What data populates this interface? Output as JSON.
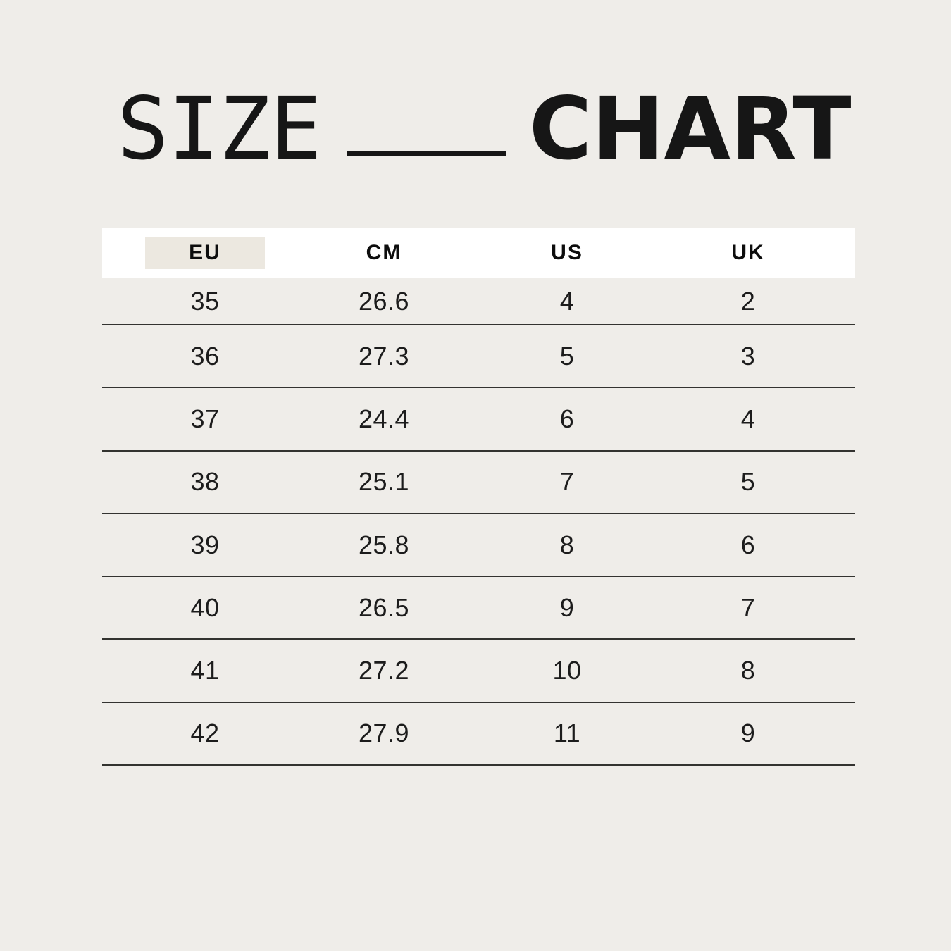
{
  "title": {
    "left_word": "SIZE",
    "right_word": "CHART"
  },
  "table": {
    "columns": [
      "EU",
      "CM",
      "US",
      "UK"
    ],
    "highlighted_column": "EU",
    "rows": [
      [
        "35",
        "26.6",
        "4",
        "2"
      ],
      [
        "36",
        "27.3",
        "5",
        "3"
      ],
      [
        "37",
        "24.4",
        "6",
        "4"
      ],
      [
        "38",
        "25.1",
        "7",
        "5"
      ],
      [
        "39",
        "25.8",
        "8",
        "6"
      ],
      [
        "40",
        "26.5",
        "9",
        "7"
      ],
      [
        "41",
        "27.2",
        "10",
        "8"
      ],
      [
        "42",
        "27.9",
        "11",
        "9"
      ]
    ]
  },
  "chart_data": {
    "type": "table",
    "title": "SIZE CHART",
    "columns": [
      "EU",
      "CM",
      "US",
      "UK"
    ],
    "rows": [
      {
        "EU": 35,
        "CM": 26.6,
        "US": 4,
        "UK": 2
      },
      {
        "EU": 36,
        "CM": 27.3,
        "US": 5,
        "UK": 3
      },
      {
        "EU": 37,
        "CM": 24.4,
        "US": 6,
        "UK": 4
      },
      {
        "EU": 38,
        "CM": 25.1,
        "US": 7,
        "UK": 5
      },
      {
        "EU": 39,
        "CM": 25.8,
        "US": 8,
        "UK": 6
      },
      {
        "EU": 40,
        "CM": 26.5,
        "US": 9,
        "UK": 7
      },
      {
        "EU": 41,
        "CM": 27.2,
        "US": 10,
        "UK": 8
      },
      {
        "EU": 42,
        "CM": 27.9,
        "US": 11,
        "UK": 9
      }
    ],
    "layout_hints": {
      "header_background": "highlight on EU column header",
      "row_dividers": true
    }
  },
  "colors": {
    "background": "#efede9",
    "header_band": "#ffffff",
    "eu_highlight": "#ece8e0",
    "text": "#161616",
    "divider": "#333330"
  }
}
